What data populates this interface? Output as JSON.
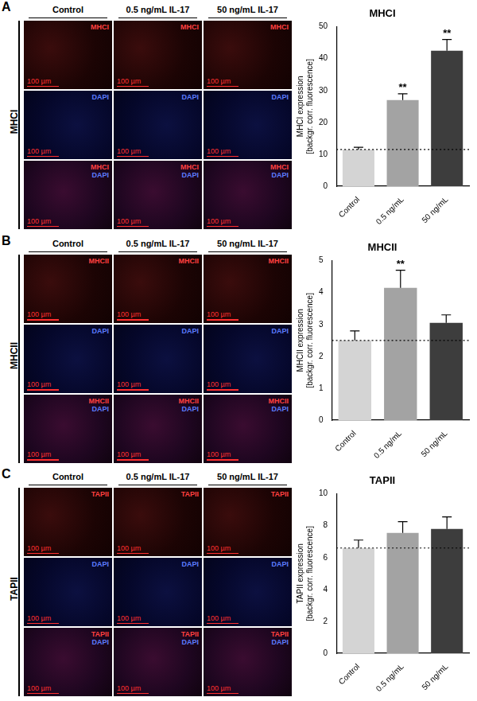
{
  "figure": {
    "panels": [
      {
        "letter": "A",
        "side_label": "MHCI",
        "columns": [
          "Control",
          "0.5 ng/mL IL-17",
          "50 ng/mL IL-17"
        ],
        "rows": [
          [
            "MHCI"
          ],
          [
            "DAPI"
          ],
          [
            "MHCI",
            "DAPI"
          ]
        ],
        "scale_bar": "100 µm"
      },
      {
        "letter": "B",
        "side_label": "MHCII",
        "columns": [
          "Control",
          "0.5 ng/mL IL-17",
          "50 ng/mL IL-17"
        ],
        "rows": [
          [
            "MHCII"
          ],
          [
            "DAPI"
          ],
          [
            "MHCII",
            "DAPI"
          ]
        ],
        "scale_bar": "100 µm"
      },
      {
        "letter": "C",
        "side_label": "TAPII",
        "columns": [
          "Control",
          "0.5 ng/mL IL-17",
          "50 ng/mL IL-17"
        ],
        "rows": [
          [
            "TAPII"
          ],
          [
            "DAPI"
          ],
          [
            "TAPII",
            "DAPI"
          ]
        ],
        "scale_bar": "100 µm"
      }
    ]
  },
  "chart_data": [
    {
      "type": "bar",
      "title": "MHCI",
      "categories": [
        "Control",
        "0.5 ng/mL",
        "50 ng/mL"
      ],
      "values": [
        11.5,
        27,
        42.5
      ],
      "error": [
        0.7,
        2,
        3.5
      ],
      "significance": [
        null,
        "**",
        "**"
      ],
      "colors": [
        "#d4d4d4",
        "#a3a3a3",
        "#3d3d3d"
      ],
      "ylabel": [
        "MHCI expression",
        "[backgr. corr. fluorescence]"
      ],
      "ylim": [
        0,
        50
      ],
      "yticks": [
        0,
        10,
        20,
        30,
        40,
        50
      ],
      "grid": false
    },
    {
      "type": "bar",
      "title": "MHCII",
      "categories": [
        "Control",
        "0.5 ng/mL",
        "50 ng/mL"
      ],
      "values": [
        2.5,
        4.15,
        3.05
      ],
      "error": [
        0.3,
        0.55,
        0.25
      ],
      "significance": [
        null,
        "**",
        null
      ],
      "colors": [
        "#d4d4d4",
        "#a3a3a3",
        "#3d3d3d"
      ],
      "ylabel": [
        "MHCII expression",
        "[backgr. corr. fluorescence]"
      ],
      "ylim": [
        0,
        5
      ],
      "yticks": [
        0,
        1,
        2,
        3,
        4,
        5
      ],
      "grid": false
    },
    {
      "type": "bar",
      "title": "TAPII",
      "categories": [
        "Control",
        "0.5 ng/mL",
        "50 ng/mL"
      ],
      "values": [
        6.6,
        7.55,
        7.8
      ],
      "error": [
        0.5,
        0.7,
        0.75
      ],
      "significance": [
        null,
        null,
        null
      ],
      "colors": [
        "#d4d4d4",
        "#a3a3a3",
        "#3d3d3d"
      ],
      "ylabel": [
        "TAPII expression",
        "[backgr. corr. fluorescence]"
      ],
      "ylim": [
        0,
        10
      ],
      "yticks": [
        0,
        2,
        4,
        6,
        8,
        10
      ],
      "grid": false
    }
  ]
}
